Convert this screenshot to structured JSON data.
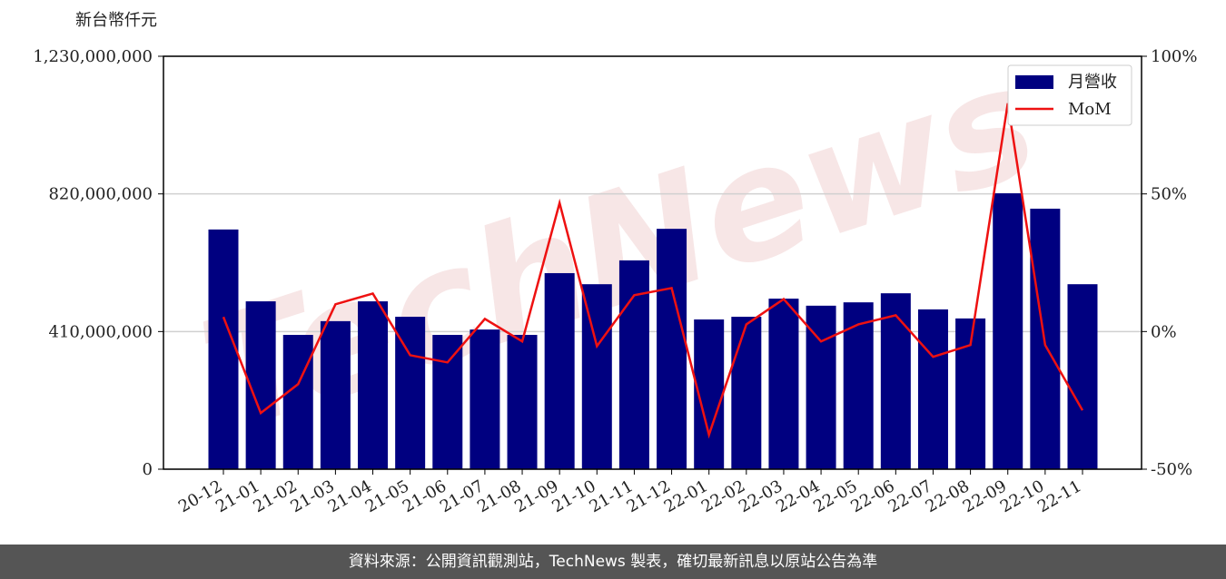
{
  "chart_data": {
    "type": "bar",
    "ylabel": "新台幣仟元",
    "watermark": "TechNews",
    "categories": [
      "20-12",
      "21-01",
      "21-02",
      "21-03",
      "21-04",
      "21-05",
      "21-06",
      "21-07",
      "21-08",
      "21-09",
      "21-10",
      "21-11",
      "21-12",
      "22-01",
      "22-02",
      "22-03",
      "22-04",
      "22-05",
      "22-06",
      "22-07",
      "22-08",
      "22-09",
      "22-10",
      "22-11"
    ],
    "series": [
      {
        "name": "月營收",
        "type": "bar",
        "color": "#000080",
        "values": [
          714000000,
          500000000,
          400000000,
          441000000,
          500000000,
          454000000,
          400000000,
          416000000,
          400000000,
          584000000,
          551000000,
          622000000,
          716000000,
          446000000,
          454000000,
          508000000,
          487000000,
          497000000,
          524000000,
          476000000,
          449000000,
          822000000,
          776000000,
          551000000
        ]
      },
      {
        "name": "MoM",
        "type": "line",
        "axis": "y2",
        "color": "#ee1111",
        "values": [
          5.3,
          -29.6,
          -19.1,
          9.9,
          13.8,
          -8.6,
          -11.2,
          4.6,
          -3.6,
          46.7,
          -5.3,
          13.2,
          15.8,
          -37.5,
          2.6,
          11.8,
          -3.6,
          2.6,
          5.9,
          -9.2,
          -4.9,
          82.9,
          -4.9,
          -28.6
        ]
      }
    ],
    "ylim": [
      0,
      1230000000
    ],
    "yticks": [
      0,
      {
        "value": 410000000,
        "label": "410,000,000"
      },
      {
        "value": 820000000,
        "label": "820,000,000"
      },
      {
        "value": 1230000000,
        "label": "1,230,000,000"
      }
    ],
    "y2lim": [
      -50,
      100
    ],
    "y2ticks": [
      {
        "value": -50,
        "label": "-50%"
      },
      {
        "value": 0,
        "label": "0%"
      },
      {
        "value": 50,
        "label": "50%"
      },
      {
        "value": 100,
        "label": "100%"
      }
    ],
    "grid": true,
    "legend": "upper right",
    "footer": "資料來源：公開資訊觀測站，TechNews 製表，確切最新訊息以原站公告為準"
  }
}
